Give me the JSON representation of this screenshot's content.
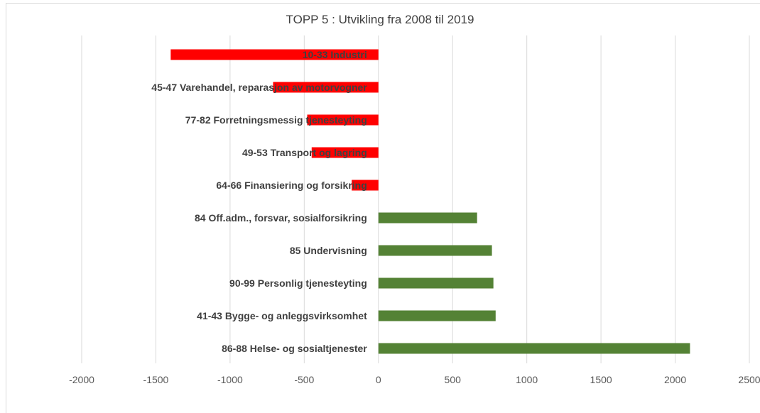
{
  "chart_data": {
    "type": "bar",
    "orientation": "horizontal",
    "title": "TOPP 5 : Utvikling fra 2008 til 2019",
    "xlabel": "",
    "ylabel": "",
    "xlim": [
      -2000,
      2500
    ],
    "xticks": [
      "-2000",
      "-1500",
      "-1000",
      "-500",
      "0",
      "500",
      "1000",
      "1500",
      "2000",
      "2500"
    ],
    "grid": true,
    "legend": "none",
    "categories": [
      "10-33 Industri",
      "45-47 Varehandel, reparasjon av motorvogner",
      "77-82 Forretningsmessig tjenesteyting",
      "49-53 Transport og lagring",
      "64-66 Finansiering og forsikring",
      "84 Off.adm., forsvar, sosialforsikring",
      "85 Undervisning",
      "90-99 Personlig tjenesteyting",
      "41-43 Bygge- og anleggsvirksomhet",
      "86-88 Helse- og sosialtjenester"
    ],
    "values": [
      -1400,
      -710,
      -480,
      -450,
      -180,
      665,
      765,
      775,
      790,
      2100
    ],
    "colors": {
      "negative": "#ff0000",
      "positive": "#548235",
      "grid": "#d9d9d9",
      "text": "#404040"
    }
  }
}
